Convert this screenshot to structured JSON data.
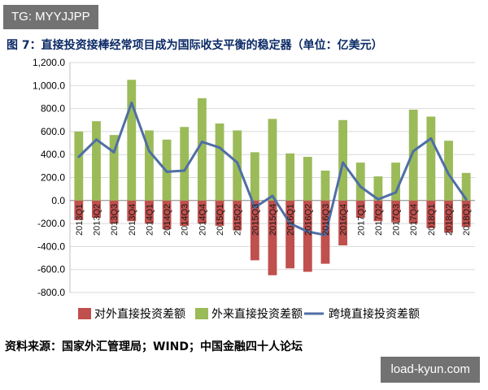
{
  "watermark_top": "TG: MYYJJPP",
  "title": "图 7：直接投资接棒经常项目成为国际收支平衡的稳定器（单位：亿美元）",
  "source": "资料来源：国家外汇管理局；WIND；中国金融四十人论坛",
  "watermark_bottom": "load-kyun.com",
  "colors": {
    "outflow": "#c0504d",
    "inflow": "#9bbb59",
    "net": "#4f6ea5",
    "grid": "#d9d9d9"
  },
  "chart_data": {
    "type": "bar",
    "categories": [
      "2013Q1",
      "2013Q2",
      "2013Q3",
      "2013Q4",
      "2014Q1",
      "2014Q2",
      "2014Q3",
      "2014Q4",
      "2015Q1",
      "2015Q2",
      "2015Q3",
      "2015Q4",
      "2016Q1",
      "2016Q2",
      "2016Q3",
      "2016Q4",
      "2017Q1",
      "2017Q2",
      "2017Q3",
      "2017Q4",
      "2018Q1",
      "2018Q2",
      "2018Q3"
    ],
    "series": [
      {
        "name": "对外直接投资差额",
        "type": "bar",
        "color": "#c0504d",
        "values": [
          -170,
          -150,
          -200,
          -180,
          -200,
          -250,
          -220,
          -200,
          -220,
          -260,
          -520,
          -650,
          -590,
          -620,
          -550,
          -390,
          -150,
          -180,
          -190,
          -200,
          -240,
          -280,
          -230
        ]
      },
      {
        "name": "外来直接投资差额",
        "type": "bar",
        "color": "#9bbb59",
        "values": [
          600,
          690,
          570,
          1050,
          610,
          530,
          640,
          890,
          670,
          610,
          420,
          710,
          410,
          380,
          260,
          700,
          330,
          210,
          330,
          790,
          730,
          520,
          240
        ]
      },
      {
        "name": "跨境直接投资差额",
        "type": "line",
        "color": "#4f6ea5",
        "values": [
          380,
          530,
          420,
          850,
          430,
          250,
          260,
          510,
          460,
          330,
          -60,
          40,
          -200,
          -270,
          -300,
          330,
          120,
          10,
          70,
          430,
          540,
          230,
          10
        ]
      }
    ],
    "ylim": [
      -800,
      1200
    ],
    "yticks": [
      "-800.0",
      "-600.0",
      "-400.0",
      "-200.0",
      "0.0",
      "200.0",
      "400.0",
      "600.0",
      "800.0",
      "1,000.0",
      "1,200.0"
    ],
    "legend": "bottom",
    "grid": true
  }
}
